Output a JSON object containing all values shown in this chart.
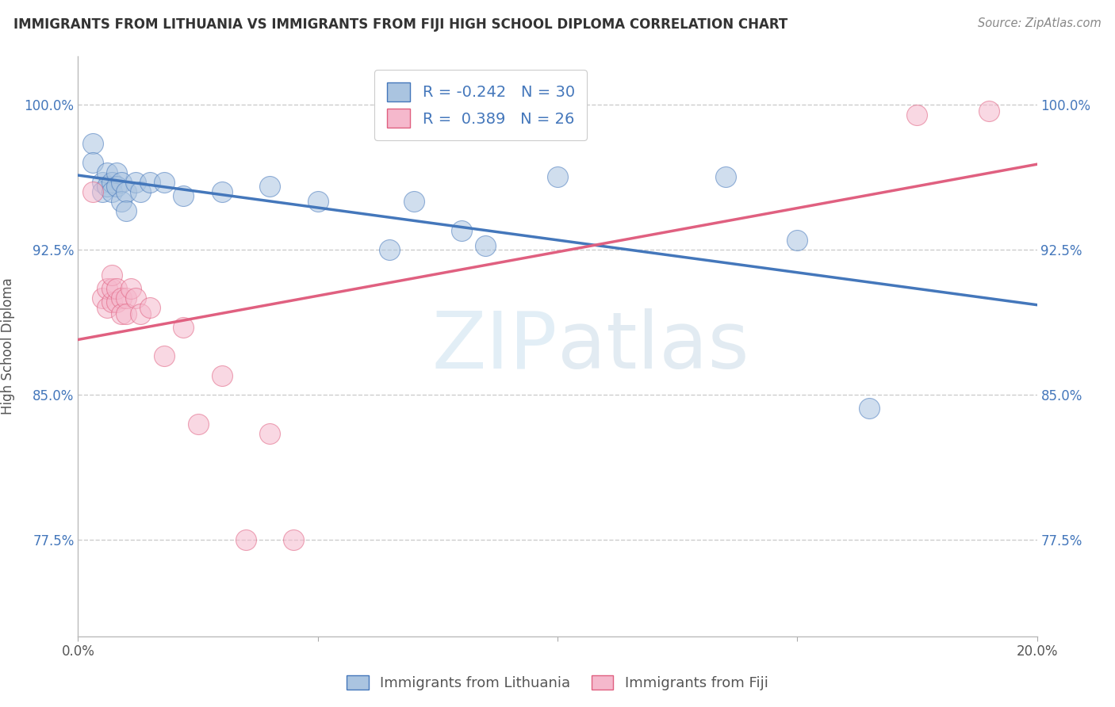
{
  "title": "IMMIGRANTS FROM LITHUANIA VS IMMIGRANTS FROM FIJI HIGH SCHOOL DIPLOMA CORRELATION CHART",
  "source": "Source: ZipAtlas.com",
  "ylabel": "High School Diploma",
  "xlim": [
    0.0,
    0.2
  ],
  "ylim": [
    0.725,
    1.025
  ],
  "yticks": [
    0.775,
    0.85,
    0.925,
    1.0
  ],
  "ytick_labels": [
    "77.5%",
    "85.0%",
    "92.5%",
    "100.0%"
  ],
  "xticks": [
    0.0,
    0.05,
    0.1,
    0.15,
    0.2
  ],
  "xtick_labels": [
    "0.0%",
    "",
    "",
    "",
    "20.0%"
  ],
  "legend_R_blue": "-0.242",
  "legend_N_blue": "30",
  "legend_R_pink": "0.389",
  "legend_N_pink": "26",
  "blue_scatter": [
    [
      0.003,
      0.98
    ],
    [
      0.003,
      0.97
    ],
    [
      0.005,
      0.96
    ],
    [
      0.005,
      0.955
    ],
    [
      0.006,
      0.965
    ],
    [
      0.006,
      0.958
    ],
    [
      0.007,
      0.96
    ],
    [
      0.007,
      0.955
    ],
    [
      0.008,
      0.965
    ],
    [
      0.008,
      0.958
    ],
    [
      0.009,
      0.96
    ],
    [
      0.009,
      0.95
    ],
    [
      0.01,
      0.955
    ],
    [
      0.01,
      0.945
    ],
    [
      0.012,
      0.96
    ],
    [
      0.013,
      0.955
    ],
    [
      0.015,
      0.96
    ],
    [
      0.018,
      0.96
    ],
    [
      0.022,
      0.953
    ],
    [
      0.03,
      0.955
    ],
    [
      0.04,
      0.958
    ],
    [
      0.05,
      0.95
    ],
    [
      0.065,
      0.925
    ],
    [
      0.07,
      0.95
    ],
    [
      0.08,
      0.935
    ],
    [
      0.085,
      0.927
    ],
    [
      0.1,
      0.963
    ],
    [
      0.135,
      0.963
    ],
    [
      0.15,
      0.93
    ],
    [
      0.165,
      0.843
    ]
  ],
  "pink_scatter": [
    [
      0.003,
      0.955
    ],
    [
      0.005,
      0.9
    ],
    [
      0.006,
      0.895
    ],
    [
      0.006,
      0.905
    ],
    [
      0.007,
      0.898
    ],
    [
      0.007,
      0.905
    ],
    [
      0.007,
      0.912
    ],
    [
      0.008,
      0.898
    ],
    [
      0.008,
      0.905
    ],
    [
      0.009,
      0.9
    ],
    [
      0.009,
      0.892
    ],
    [
      0.01,
      0.9
    ],
    [
      0.01,
      0.892
    ],
    [
      0.011,
      0.905
    ],
    [
      0.012,
      0.9
    ],
    [
      0.013,
      0.892
    ],
    [
      0.015,
      0.895
    ],
    [
      0.018,
      0.87
    ],
    [
      0.022,
      0.885
    ],
    [
      0.025,
      0.835
    ],
    [
      0.03,
      0.86
    ],
    [
      0.035,
      0.775
    ],
    [
      0.04,
      0.83
    ],
    [
      0.045,
      0.775
    ],
    [
      0.175,
      0.995
    ],
    [
      0.19,
      0.997
    ]
  ],
  "blue_color": "#aac4e0",
  "pink_color": "#f5b8cc",
  "blue_line_color": "#4477bb",
  "pink_line_color": "#e06080",
  "watermark_zip": "ZIP",
  "watermark_atlas": "atlas",
  "background_color": "#ffffff",
  "grid_color": "#cccccc"
}
